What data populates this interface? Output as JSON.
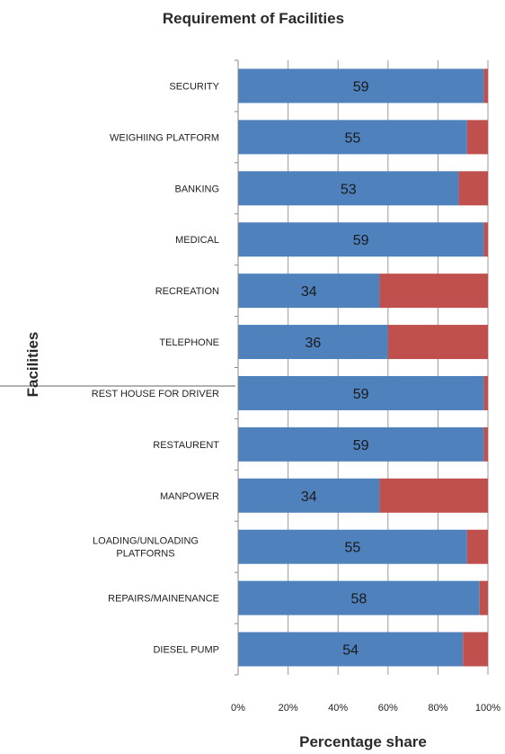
{
  "chart_data": {
    "type": "bar",
    "orientation": "horizontal",
    "stacked": true,
    "normalized_percent": true,
    "title": "Requirement of Facilities",
    "xlabel": "Percentage share",
    "ylabel": "Facilities",
    "xlim": [
      0,
      100
    ],
    "x_ticks": [
      "0%",
      "20%",
      "40%",
      "60%",
      "80%",
      "100%"
    ],
    "grid": true,
    "legend": "none",
    "categories": [
      "SECURITY",
      "WEIGHIING PLATFORM",
      "BANKING",
      "MEDICAL",
      "RECREATION",
      "TELEPHONE",
      "REST HOUSE FOR DRIVER",
      "RESTAURENT",
      "MANPOWER",
      "LOADING/UNLOADING PLATFORNS",
      "REPAIRS/MAINENANCE",
      "DIESEL PUMP"
    ],
    "series": [
      {
        "color": "#4F81BD",
        "values": [
          59,
          55,
          53,
          59,
          34,
          36,
          59,
          59,
          34,
          55,
          58,
          54
        ],
        "show_labels": true
      },
      {
        "color": "#C0504D",
        "values": [
          1,
          5,
          7,
          1,
          26,
          24,
          1,
          1,
          26,
          5,
          2,
          6
        ],
        "show_labels": false
      }
    ]
  }
}
